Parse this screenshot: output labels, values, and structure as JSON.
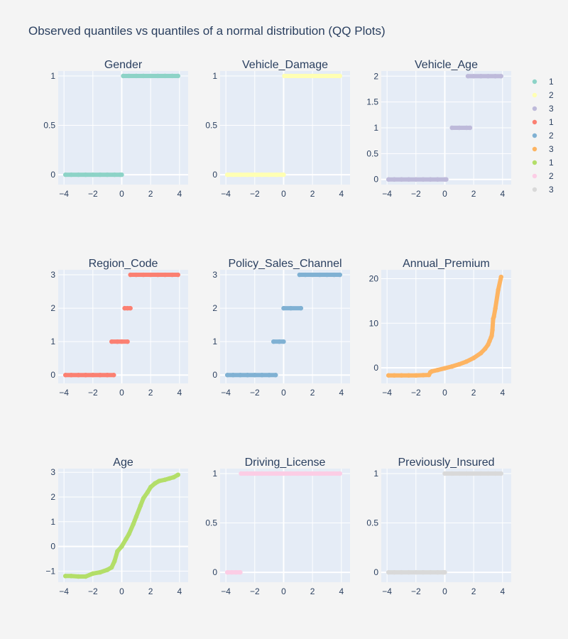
{
  "title": "Observed quantiles vs quantiles of a normal distribution (QQ Plots)",
  "legend": {
    "placement": "right",
    "entries": [
      {
        "label": "1",
        "color": "#8dd3c7"
      },
      {
        "label": "2",
        "color": "#ffffb3"
      },
      {
        "label": "3",
        "color": "#bebada"
      },
      {
        "label": "1",
        "color": "#fb8072"
      },
      {
        "label": "2",
        "color": "#80b1d3"
      },
      {
        "label": "3",
        "color": "#fdb462"
      },
      {
        "label": "1",
        "color": "#b3de69"
      },
      {
        "label": "2",
        "color": "#fccde5"
      },
      {
        "label": "3",
        "color": "#d9d9d9"
      }
    ]
  },
  "chart_data": [
    {
      "type": "scatter",
      "title": "Gender",
      "color": "#8dd3c7",
      "xlim": [
        -4.4,
        4.6
      ],
      "ylim": [
        -0.1,
        1.05
      ],
      "grid": true,
      "xticks": [
        -4,
        -2,
        0,
        2,
        4
      ],
      "xticklabels": [
        "−4",
        "−2",
        "0",
        "2",
        "4"
      ],
      "yticks": [
        0,
        0.5,
        1
      ],
      "yticklabels": [
        "0",
        "0.5",
        "1"
      ],
      "x": [
        -3.9,
        -3.5,
        -3.0,
        -2.5,
        -2.0,
        -1.5,
        -1.0,
        -0.5,
        -0.1,
        0.0,
        0.1,
        0.5,
        1.0,
        1.5,
        2.0,
        2.5,
        3.0,
        3.5,
        3.9
      ],
      "y": [
        0,
        0,
        0,
        0,
        0,
        0,
        0,
        0,
        0,
        0,
        1,
        1,
        1,
        1,
        1,
        1,
        1,
        1,
        1
      ]
    },
    {
      "type": "scatter",
      "title": "Vehicle_Damage",
      "color": "#ffffb3",
      "xlim": [
        -4.4,
        4.6
      ],
      "ylim": [
        -0.1,
        1.05
      ],
      "grid": true,
      "xticks": [
        -4,
        -2,
        0,
        2,
        4
      ],
      "xticklabels": [
        "−4",
        "−2",
        "0",
        "2",
        "4"
      ],
      "yticks": [
        0,
        0.5,
        1
      ],
      "yticklabels": [
        "0",
        "0.5",
        "1"
      ],
      "x": [
        -3.9,
        -3.5,
        -3.0,
        -2.5,
        -2.0,
        -1.5,
        -1.0,
        -0.5,
        -0.1,
        0.0,
        0.05,
        0.5,
        1.0,
        1.5,
        2.0,
        2.5,
        3.0,
        3.5,
        3.9
      ],
      "y": [
        0,
        0,
        0,
        0,
        0,
        0,
        0,
        0,
        0,
        0,
        1,
        1,
        1,
        1,
        1,
        1,
        1,
        1,
        1
      ]
    },
    {
      "type": "scatter",
      "title": "Vehicle_Age",
      "color": "#bebada",
      "xlim": [
        -4.4,
        4.6
      ],
      "ylim": [
        -0.1,
        2.1
      ],
      "grid": true,
      "xticks": [
        -4,
        -2,
        0,
        2,
        4
      ],
      "xticklabels": [
        "−4",
        "−2",
        "0",
        "2",
        "4"
      ],
      "yticks": [
        0,
        0.5,
        1,
        1.5,
        2
      ],
      "yticklabels": [
        "0",
        "0.5",
        "1",
        "1.5",
        "2"
      ],
      "x": [
        -3.9,
        -3.5,
        -3.0,
        -2.5,
        -2.0,
        -1.5,
        -1.0,
        -0.5,
        0.0,
        0.1,
        0.5,
        1.0,
        1.5,
        1.75,
        1.6,
        2.0,
        2.5,
        3.0,
        3.5,
        3.9
      ],
      "y": [
        0,
        0,
        0,
        0,
        0,
        0,
        0,
        0,
        0,
        0,
        1,
        1,
        1,
        1,
        2,
        2,
        2,
        2,
        2,
        2
      ]
    },
    {
      "type": "scatter",
      "title": "Region_Code",
      "color": "#fb8072",
      "xlim": [
        -4.4,
        4.6
      ],
      "ylim": [
        -0.25,
        3.15
      ],
      "grid": true,
      "xticks": [
        -4,
        -2,
        0,
        2,
        4
      ],
      "xticklabels": [
        "−4",
        "−2",
        "0",
        "2",
        "4"
      ],
      "yticks": [
        0,
        1,
        2,
        3
      ],
      "yticklabels": [
        "0",
        "1",
        "2",
        "3"
      ],
      "x": [
        -3.9,
        -3.5,
        -3.0,
        -2.5,
        -2.0,
        -1.5,
        -1.0,
        -0.55,
        -0.7,
        -0.3,
        0.0,
        0.4,
        0.2,
        0.4,
        0.6,
        0.6,
        1.0,
        1.5,
        2.0,
        2.5,
        3.0,
        3.5,
        3.9
      ],
      "y": [
        0,
        0,
        0,
        0,
        0,
        0,
        0,
        0,
        1,
        1,
        1,
        1,
        2,
        2,
        2,
        3,
        3,
        3,
        3,
        3,
        3,
        3,
        3
      ]
    },
    {
      "type": "scatter",
      "title": "Policy_Sales_Channel",
      "color": "#80b1d3",
      "xlim": [
        -4.4,
        4.6
      ],
      "ylim": [
        -0.25,
        3.15
      ],
      "grid": true,
      "xticks": [
        -4,
        -2,
        0,
        2,
        4
      ],
      "xticklabels": [
        "−4",
        "−2",
        "0",
        "2",
        "4"
      ],
      "yticks": [
        0,
        1,
        2,
        3
      ],
      "yticklabels": [
        "0",
        "1",
        "2",
        "3"
      ],
      "x": [
        -3.9,
        -3.5,
        -3.0,
        -2.5,
        -2.0,
        -1.5,
        -1.0,
        -0.55,
        -0.7,
        -0.3,
        0.0,
        0.0,
        0.5,
        1.2,
        1.1,
        1.5,
        2.0,
        2.5,
        3.0,
        3.5,
        3.9
      ],
      "y": [
        0,
        0,
        0,
        0,
        0,
        0,
        0,
        0,
        1,
        1,
        1,
        2,
        2,
        2,
        3,
        3,
        3,
        3,
        3,
        3,
        3
      ]
    },
    {
      "type": "scatter",
      "title": "Annual_Premium",
      "color": "#fdb462",
      "xlim": [
        -4.4,
        4.6
      ],
      "ylim": [
        -3.5,
        22
      ],
      "grid": true,
      "xticks": [
        -4,
        -2,
        0,
        2,
        4
      ],
      "xticklabels": [
        "−4",
        "−2",
        "0",
        "2",
        "4"
      ],
      "yticks": [
        0,
        10,
        20
      ],
      "yticklabels": [
        "0",
        "10",
        "20"
      ],
      "x": [
        -3.9,
        -3.5,
        -3.0,
        -2.5,
        -2.0,
        -1.5,
        -1.1,
        -1.0,
        -0.9,
        -0.5,
        0.0,
        0.5,
        1.0,
        1.5,
        2.0,
        2.5,
        2.8,
        3.0,
        3.1,
        3.2,
        3.25,
        3.3,
        3.35,
        3.4,
        3.5,
        3.7,
        3.9
      ],
      "y": [
        -1.7,
        -1.7,
        -1.7,
        -1.7,
        -1.7,
        -1.65,
        -1.6,
        -1.0,
        -0.8,
        -0.5,
        -0.1,
        0.3,
        0.8,
        1.4,
        2.2,
        3.3,
        4.3,
        5.2,
        6.0,
        6.8,
        7.2,
        8.5,
        11.0,
        11.5,
        13.3,
        17.5,
        20.4
      ]
    },
    {
      "type": "scatter",
      "title": "Age",
      "color": "#b3de69",
      "xlim": [
        -4.4,
        4.6
      ],
      "ylim": [
        -1.45,
        3.15
      ],
      "grid": true,
      "xticks": [
        -4,
        -2,
        0,
        2,
        4
      ],
      "xticklabels": [
        "−4",
        "−2",
        "0",
        "2",
        "4"
      ],
      "yticks": [
        -1,
        0,
        1,
        2,
        3
      ],
      "yticklabels": [
        "−1",
        "0",
        "1",
        "2",
        "3"
      ],
      "x": [
        -3.9,
        -3.5,
        -3.0,
        -2.5,
        -2.0,
        -1.5,
        -1.0,
        -0.7,
        -0.5,
        -0.3,
        0.0,
        0.3,
        0.5,
        0.8,
        1.0,
        1.3,
        1.5,
        1.8,
        2.0,
        2.3,
        2.6,
        3.0,
        3.3,
        3.6,
        3.9
      ],
      "y": [
        -1.2,
        -1.2,
        -1.22,
        -1.22,
        -1.1,
        -1.05,
        -0.95,
        -0.85,
        -0.6,
        -0.2,
        0.0,
        0.3,
        0.5,
        0.9,
        1.2,
        1.65,
        1.95,
        2.2,
        2.4,
        2.55,
        2.65,
        2.7,
        2.75,
        2.8,
        2.9
      ]
    },
    {
      "type": "scatter",
      "title": "Driving_License",
      "color": "#fccde5",
      "xlim": [
        -4.4,
        4.6
      ],
      "ylim": [
        -0.1,
        1.05
      ],
      "grid": true,
      "xticks": [
        -4,
        -2,
        0,
        2,
        4
      ],
      "xticklabels": [
        "−4",
        "−2",
        "0",
        "2",
        "4"
      ],
      "yticks": [
        0,
        0.5,
        1
      ],
      "yticklabels": [
        "0",
        "0.5",
        "1"
      ],
      "x": [
        -3.9,
        -3.6,
        -3.3,
        -3.0,
        -2.95,
        -2.5,
        -2.0,
        -1.5,
        -1.0,
        -0.5,
        0.0,
        0.5,
        1.0,
        1.5,
        2.0,
        2.5,
        3.0,
        3.5,
        3.9
      ],
      "y": [
        0,
        0,
        0,
        0,
        1,
        1,
        1,
        1,
        1,
        1,
        1,
        1,
        1,
        1,
        1,
        1,
        1,
        1,
        1
      ]
    },
    {
      "type": "scatter",
      "title": "Previously_Insured",
      "color": "#d9d9d9",
      "xlim": [
        -4.4,
        4.6
      ],
      "ylim": [
        -0.1,
        1.05
      ],
      "grid": true,
      "xticks": [
        -4,
        -2,
        0,
        2,
        4
      ],
      "xticklabels": [
        "−4",
        "−2",
        "0",
        "2",
        "4"
      ],
      "yticks": [
        0,
        0.5,
        1
      ],
      "yticklabels": [
        "0",
        "0.5",
        "1"
      ],
      "x": [
        -3.9,
        -3.5,
        -3.0,
        -2.5,
        -2.0,
        -1.5,
        -1.0,
        -0.5,
        -0.1,
        0.0,
        0.0,
        0.5,
        1.0,
        1.5,
        2.0,
        2.5,
        3.0,
        3.5,
        3.9
      ],
      "y": [
        0,
        0,
        0,
        0,
        0,
        0,
        0,
        0,
        0,
        0,
        1,
        1,
        1,
        1,
        1,
        1,
        1,
        1,
        1
      ]
    }
  ]
}
